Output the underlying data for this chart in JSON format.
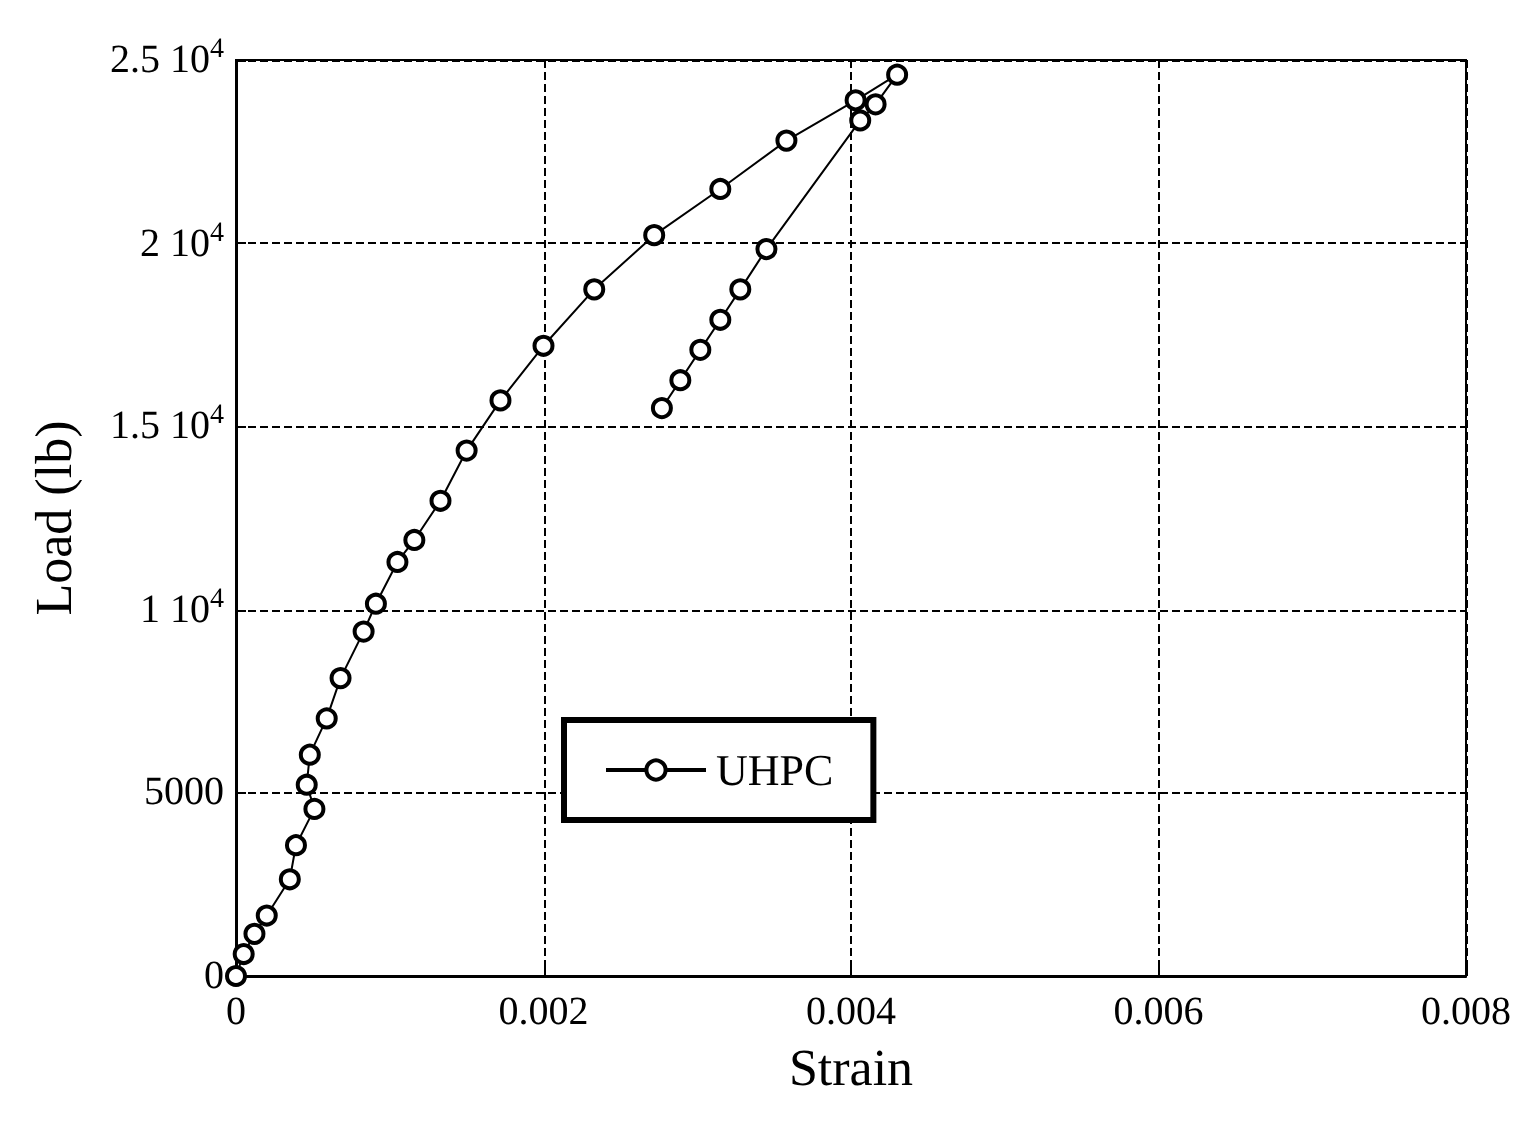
{
  "chart_data": {
    "type": "line",
    "xlabel": "Strain",
    "ylabel": "Load (lb)",
    "xlim": [
      0,
      0.008
    ],
    "xticks": [
      {
        "value": 0,
        "label": "0"
      },
      {
        "value": 0.002,
        "label": "0.002"
      },
      {
        "value": 0.004,
        "label": "0.004"
      },
      {
        "value": 0.006,
        "label": "0.006"
      },
      {
        "value": 0.008,
        "label": "0.008"
      }
    ],
    "ylim": [
      0,
      25000
    ],
    "yticks": [
      {
        "value": 0,
        "label": "0"
      },
      {
        "value": 5000,
        "label": "5000"
      },
      {
        "value": 10000,
        "label": "1 10$^{4}$"
      },
      {
        "value": 15000,
        "label": "1.5 10$^{4}$"
      },
      {
        "value": 20000,
        "label": "2 10$^{4}$"
      },
      {
        "value": 25000,
        "label": "2.5 10$^{4}$"
      }
    ],
    "grid": true,
    "legend": "center",
    "marker": "circle",
    "line_style": "solid",
    "series": [
      {
        "name": "UHPC",
        "color": "#000000",
        "x": [
          0,
          5e-05,
          0.00012,
          0.0002,
          0.00035,
          0.00039,
          0.00051,
          0.00046,
          0.00048,
          0.00059,
          0.00068,
          0.00083,
          0.00091,
          0.00105,
          0.00116,
          0.00133,
          0.0015,
          0.00172,
          0.002,
          0.00233,
          0.00272,
          0.00315,
          0.00358,
          0.00403,
          0.0043,
          0.00416,
          0.00406,
          0.00345,
          0.00328,
          0.00315,
          0.00302,
          0.00289,
          0.00277
        ],
        "values": [
          0,
          600,
          1150,
          1650,
          2640,
          3570,
          4560,
          5220,
          6040,
          7030,
          8130,
          9400,
          10160,
          11300,
          11900,
          12970,
          14340,
          15710,
          17200,
          18740,
          20220,
          21480,
          22800,
          23900,
          24600,
          23790,
          23350,
          19840,
          18740,
          17910,
          17090,
          16260,
          15500
        ]
      }
    ]
  }
}
